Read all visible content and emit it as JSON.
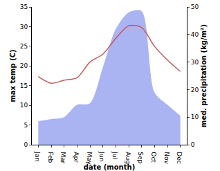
{
  "chart_data": {
    "type": "line",
    "x_label": "date (month)",
    "y_label": "max temp (C)",
    "y2_label": "med. precipitation (kg/m²)",
    "categories": [
      "Jan",
      "Feb",
      "Mar",
      "Apr",
      "May",
      "Jun",
      "Jul",
      "Aug",
      "Sep",
      "Oct",
      "Nov",
      "Dec"
    ],
    "series": [
      {
        "name": "med. precipitation",
        "type": "area",
        "axis": "y2",
        "color": "#aab4f2",
        "values": [
          8.5,
          9.3,
          10,
          14.5,
          15,
          28,
          42,
          48,
          48.5,
          19,
          14.5,
          10.5
        ]
      },
      {
        "name": "max temp",
        "type": "line",
        "color": "#c8575b",
        "values": [
          17.3,
          15.6,
          16.4,
          17.0,
          21.0,
          23.0,
          27.0,
          30.2,
          29.8,
          25.0,
          21.5,
          18.6
        ]
      }
    ],
    "ylim": [
      0,
      35
    ],
    "yticks": [
      0,
      5,
      10,
      15,
      20,
      25,
      30,
      35
    ],
    "y2lim": [
      0,
      50
    ],
    "y2ticks": [
      0,
      10,
      20,
      30,
      40,
      50
    ],
    "grid": false
  }
}
